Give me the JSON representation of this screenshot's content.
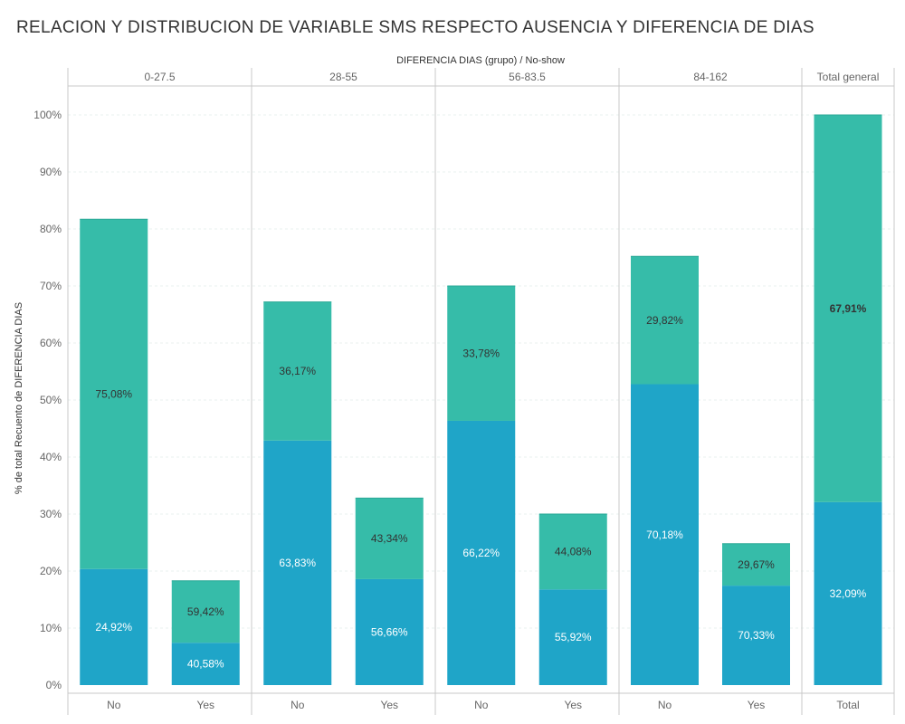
{
  "title": "RELACION Y DISTRIBUCION DE  VARIABLE SMS RESPECTO AUSENCIA Y DIFERENCIA DE DIAS",
  "colors": {
    "SMS no recibido": "#1fa5c8",
    "SMS recibido": "#36bca9",
    "axis": "#c9c9c9",
    "text": "#666666",
    "label_dark": "#333333",
    "label_light": "#ffffff"
  },
  "chart_data": {
    "type": "bar",
    "stacked": true,
    "title": "RELACION Y DISTRIBUCION DE  VARIABLE SMS RESPECTO AUSENCIA Y DIFERENCIA DE DIAS",
    "xlabel": "",
    "column_header_title": "DIFERENCIA DIAS (grupo)  /  No-show",
    "ylabel": "% de total Recuento de DIFERENCIA DIAS",
    "ylim": [
      0,
      100
    ],
    "yticks": [
      0,
      10,
      20,
      30,
      40,
      50,
      60,
      70,
      80,
      90,
      100
    ],
    "ytick_labels": [
      "0%",
      "10%",
      "20%",
      "30%",
      "40%",
      "50%",
      "60%",
      "70%",
      "80%",
      "90%",
      "100%"
    ],
    "grid": true,
    "groups": [
      {
        "label": "0-27.5",
        "categories": [
          "No",
          "Yes"
        ],
        "totals": [
          81.7,
          18.3
        ],
        "bottom_labels": [
          "24,92%",
          "40,58%"
        ],
        "top_labels": [
          "75,08%",
          "59,42%"
        ]
      },
      {
        "label": "28-55",
        "categories": [
          "No",
          "Yes"
        ],
        "totals": [
          67.2,
          32.8
        ],
        "bottom_labels": [
          "63,83%",
          "56,66%"
        ],
        "top_labels": [
          "36,17%",
          "43,34%"
        ]
      },
      {
        "label": "56-83.5",
        "categories": [
          "No",
          "Yes"
        ],
        "totals": [
          70.0,
          30.0
        ],
        "bottom_labels": [
          "66,22%",
          "55,92%"
        ],
        "top_labels": [
          "33,78%",
          "44,08%"
        ]
      },
      {
        "label": "84-162",
        "categories": [
          "No",
          "Yes"
        ],
        "totals": [
          75.2,
          24.8
        ],
        "bottom_labels": [
          "70,18%",
          "70,33%"
        ],
        "top_labels": [
          "29,82%",
          "29,67%"
        ]
      },
      {
        "label": "Total general",
        "categories": [
          "Total"
        ],
        "totals": [
          100.0
        ],
        "bottom_labels": [
          "32,09%"
        ],
        "top_labels": [
          "67,91%"
        ]
      }
    ]
  }
}
